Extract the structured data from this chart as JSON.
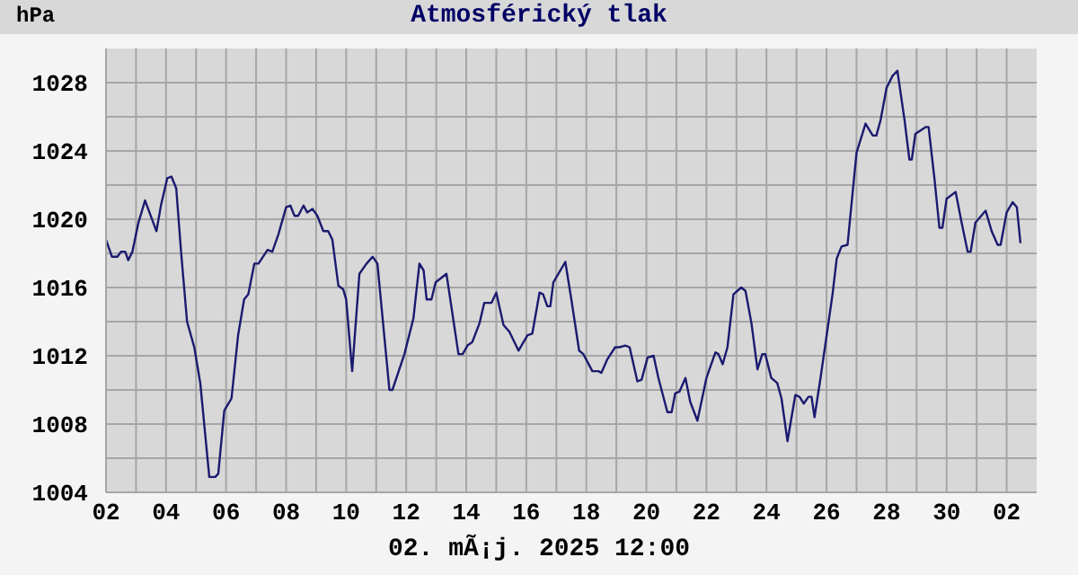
{
  "chart_data": {
    "type": "line",
    "title": "Atmosférický tlak",
    "ylabel": "hPa",
    "annotations": [
      "02. mÃ¡j. 2025 12:00"
    ],
    "grid": true,
    "marker": "none",
    "line_style": "solid",
    "xlim": [
      "2025-04-02",
      "2025-05-03"
    ],
    "ylim": [
      1004,
      1030
    ],
    "xticks": [
      {
        "value": "2025-04-02",
        "label": "02"
      },
      {
        "value": "2025-04-03",
        "label": null
      },
      {
        "value": "2025-04-04",
        "label": "04"
      },
      {
        "value": "2025-04-05",
        "label": null
      },
      {
        "value": "2025-04-06",
        "label": "06"
      },
      {
        "value": "2025-04-07",
        "label": null
      },
      {
        "value": "2025-04-08",
        "label": "08"
      },
      {
        "value": "2025-04-09",
        "label": null
      },
      {
        "value": "2025-04-10",
        "label": "10"
      },
      {
        "value": "2025-04-11",
        "label": null
      },
      {
        "value": "2025-04-12",
        "label": "12"
      },
      {
        "value": "2025-04-13",
        "label": null
      },
      {
        "value": "2025-04-14",
        "label": "14"
      },
      {
        "value": "2025-04-15",
        "label": null
      },
      {
        "value": "2025-04-16",
        "label": "16"
      },
      {
        "value": "2025-04-17",
        "label": null
      },
      {
        "value": "2025-04-18",
        "label": "18"
      },
      {
        "value": "2025-04-19",
        "label": null
      },
      {
        "value": "2025-04-20",
        "label": "20"
      },
      {
        "value": "2025-04-21",
        "label": null
      },
      {
        "value": "2025-04-22",
        "label": "22"
      },
      {
        "value": "2025-04-23",
        "label": null
      },
      {
        "value": "2025-04-24",
        "label": "24"
      },
      {
        "value": "2025-04-25",
        "label": null
      },
      {
        "value": "2025-04-26",
        "label": "26"
      },
      {
        "value": "2025-04-27",
        "label": null
      },
      {
        "value": "2025-04-28",
        "label": "28"
      },
      {
        "value": "2025-04-29",
        "label": null
      },
      {
        "value": "2025-04-30",
        "label": "30"
      },
      {
        "value": "2025-05-01",
        "label": null
      },
      {
        "value": "2025-05-02",
        "label": "02"
      }
    ],
    "yticks": [
      1004,
      {
        "value": 1006,
        "label": null
      },
      1008,
      {
        "value": 1010,
        "label": null
      },
      1012,
      {
        "value": 1014,
        "label": null
      },
      1016,
      {
        "value": 1018,
        "label": null
      },
      1020,
      {
        "value": 1022,
        "label": null
      },
      1024,
      {
        "value": 1026,
        "label": null
      },
      1028
    ],
    "series": [
      {
        "color": "#1a1a70",
        "x": [
          "2025-04-02T00:00",
          "2025-04-02T04:48",
          "2025-04-02T09:07",
          "2025-04-02T12:00",
          "2025-04-02T15:22",
          "2025-04-02T17:46",
          "2025-04-02T21:07",
          "2025-04-03T01:55",
          "2025-04-03T07:12",
          "2025-04-03T16:19",
          "2025-04-03T20:10",
          "2025-04-04T00:58",
          "2025-04-04T04:19",
          "2025-04-04T08:10",
          "2025-04-04T12:00",
          "2025-04-04T16:48",
          "2025-04-04T22:34",
          "2025-04-05T03:22",
          "2025-04-05T10:34",
          "2025-04-05T15:22",
          "2025-04-05T17:46",
          "2025-04-05T22:34",
          "2025-04-06T04:19",
          "2025-04-06T09:36",
          "2025-04-06T14:24",
          "2025-04-06T17:46",
          "2025-04-06T22:34",
          "2025-04-07T01:55",
          "2025-04-07T09:07",
          "2025-04-07T12:58",
          "2025-04-07T17:46",
          "2025-04-08T00:00",
          "2025-04-08T03:22",
          "2025-04-08T06:43",
          "2025-04-08T09:36",
          "2025-04-08T13:55",
          "2025-04-08T16:48",
          "2025-04-08T21:07",
          "2025-04-09T00:58",
          "2025-04-09T05:46",
          "2025-04-09T09:36",
          "2025-04-09T12:58",
          "2025-04-09T17:46",
          "2025-04-09T21:36",
          "2025-04-10T00:00",
          "2025-04-10T04:48",
          "2025-04-10T10:34",
          "2025-04-10T16:19",
          "2025-04-10T21:07",
          "2025-04-11T00:58",
          "2025-04-11T10:34",
          "2025-04-11T12:58",
          "2025-04-11T22:34",
          "2025-04-12T05:46",
          "2025-04-12T10:34",
          "2025-04-12T13:55",
          "2025-04-12T16:19",
          "2025-04-12T20:10",
          "2025-04-12T23:31",
          "2025-04-13T08:10",
          "2025-04-13T17:46",
          "2025-04-13T21:07",
          "2025-04-14T00:58",
          "2025-04-14T04:48",
          "2025-04-14T10:34",
          "2025-04-14T14:24",
          "2025-04-14T20:10",
          "2025-04-15T00:00",
          "2025-04-15T05:46",
          "2025-04-15T10:34",
          "2025-04-15T17:46",
          "2025-04-16T00:58",
          "2025-04-16T04:48",
          "2025-04-16T10:34",
          "2025-04-16T13:26",
          "2025-04-16T16:48",
          "2025-04-16T19:12",
          "2025-04-16T21:36",
          "2025-04-17T07:12",
          "2025-04-17T12:00",
          "2025-04-17T18:14",
          "2025-04-17T21:36",
          "2025-04-18T04:48",
          "2025-04-18T09:36",
          "2025-04-18T12:00",
          "2025-04-18T16:48",
          "2025-04-18T23:02",
          "2025-04-19T02:24",
          "2025-04-19T07:12",
          "2025-04-19T10:34",
          "2025-04-19T16:48",
          "2025-04-19T20:10",
          "2025-04-20T00:58",
          "2025-04-20T05:46",
          "2025-04-20T09:36",
          "2025-04-20T16:48",
          "2025-04-20T20:10",
          "2025-04-20T23:02",
          "2025-04-21T02:24",
          "2025-04-21T07:12",
          "2025-04-21T11:02",
          "2025-04-21T16:48",
          "2025-04-22T00:00",
          "2025-04-22T07:12",
          "2025-04-22T09:36",
          "2025-04-22T12:58",
          "2025-04-22T16:48",
          "2025-04-22T21:36",
          "2025-04-23T03:50",
          "2025-04-23T07:12",
          "2025-04-23T12:00",
          "2025-04-23T16:48",
          "2025-04-23T20:38",
          "2025-04-23T23:02",
          "2025-04-24T03:50",
          "2025-04-24T08:38",
          "2025-04-24T12:00",
          "2025-04-24T16:48",
          "2025-04-24T23:02",
          "2025-04-25T02:24",
          "2025-04-25T05:46",
          "2025-04-25T09:36",
          "2025-04-25T12:00",
          "2025-04-25T14:24",
          "2025-04-25T19:12",
          "2025-04-26T04:48",
          "2025-04-26T08:10",
          "2025-04-26T12:00",
          "2025-04-26T16:48",
          "2025-04-27T00:00",
          "2025-04-27T07:12",
          "2025-04-27T12:58",
          "2025-04-27T15:50",
          "2025-04-27T19:12",
          "2025-04-28T00:00",
          "2025-04-28T04:48",
          "2025-04-28T08:38",
          "2025-04-28T14:24",
          "2025-04-28T18:14",
          "2025-04-28T20:10",
          "2025-04-28T23:02",
          "2025-04-29T07:12",
          "2025-04-29T09:36",
          "2025-04-29T14:24",
          "2025-04-29T18:14",
          "2025-04-29T20:38",
          "2025-04-30T00:00",
          "2025-04-30T07:12",
          "2025-04-30T12:00",
          "2025-04-30T16:48",
          "2025-04-30T19:12",
          "2025-04-30T23:02",
          "2025-05-01T07:12",
          "2025-05-01T12:00",
          "2025-05-01T16:48",
          "2025-05-01T19:12",
          "2025-05-02T00:00",
          "2025-05-02T04:48",
          "2025-05-02T08:10",
          "2025-05-02T11:02"
        ],
        "values": [
          1018.8,
          1017.8,
          1017.8,
          1018.1,
          1018.1,
          1017.6,
          1018.1,
          1019.8,
          1021.1,
          1019.3,
          1020.9,
          1022.4,
          1022.5,
          1021.8,
          1018.1,
          1014.0,
          1012.5,
          1010.4,
          1004.9,
          1004.9,
          1005.1,
          1008.8,
          1009.5,
          1013.2,
          1015.3,
          1015.6,
          1017.4,
          1017.4,
          1018.2,
          1018.1,
          1019.1,
          1020.7,
          1020.8,
          1020.2,
          1020.2,
          1020.8,
          1020.4,
          1020.6,
          1020.2,
          1019.3,
          1019.3,
          1018.8,
          1016.1,
          1015.9,
          1015.3,
          1011.1,
          1016.8,
          1017.4,
          1017.8,
          1017.4,
          1010.0,
          1010.0,
          1012.1,
          1014.2,
          1017.4,
          1017.0,
          1015.3,
          1015.3,
          1016.3,
          1016.8,
          1012.1,
          1012.1,
          1012.6,
          1012.8,
          1013.9,
          1015.1,
          1015.1,
          1015.7,
          1013.8,
          1013.4,
          1012.3,
          1013.2,
          1013.3,
          1015.7,
          1015.6,
          1014.9,
          1014.9,
          1016.3,
          1017.5,
          1015.3,
          1012.3,
          1012.1,
          1011.1,
          1011.1,
          1011.0,
          1011.8,
          1012.5,
          1012.5,
          1012.6,
          1012.5,
          1010.5,
          1010.6,
          1011.9,
          1012.0,
          1010.7,
          1008.7,
          1008.7,
          1009.8,
          1009.9,
          1010.7,
          1009.3,
          1008.2,
          1010.7,
          1012.2,
          1012.1,
          1011.5,
          1012.5,
          1015.6,
          1016.0,
          1015.8,
          1013.9,
          1011.2,
          1012.1,
          1012.1,
          1010.7,
          1010.4,
          1009.5,
          1007.0,
          1009.7,
          1009.6,
          1009.2,
          1009.6,
          1009.6,
          1008.4,
          1010.7,
          1015.6,
          1017.7,
          1018.4,
          1018.5,
          1023.9,
          1025.6,
          1024.9,
          1024.9,
          1025.8,
          1027.7,
          1028.4,
          1028.7,
          1025.8,
          1023.5,
          1023.5,
          1025.0,
          1025.4,
          1025.4,
          1022.3,
          1019.5,
          1019.5,
          1021.2,
          1021.6,
          1019.8,
          1018.1,
          1018.1,
          1019.8,
          1020.5,
          1019.3,
          1018.5,
          1018.5,
          1020.4,
          1021.0,
          1020.7,
          1018.6
        ]
      }
    ]
  }
}
